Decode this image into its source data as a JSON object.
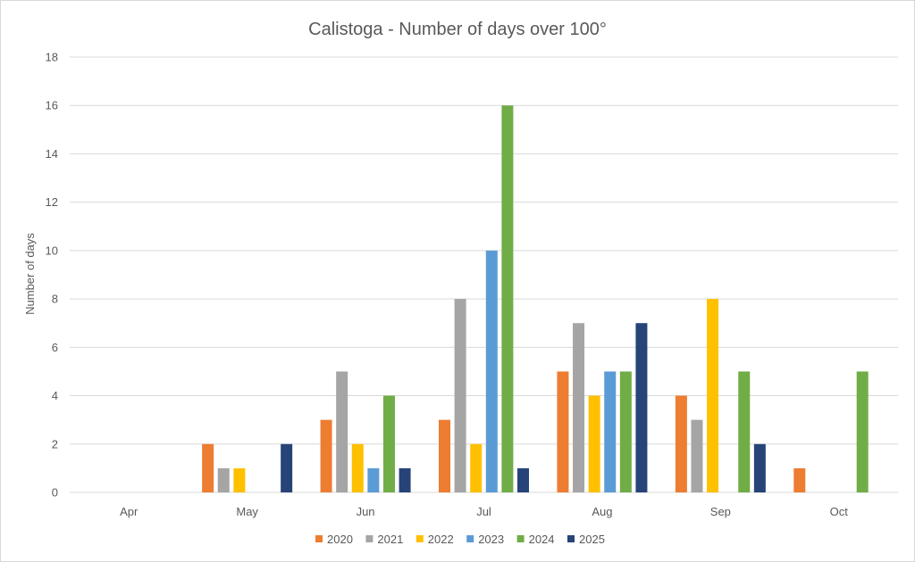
{
  "chart_data": {
    "type": "bar",
    "title": "Calistoga - Number of days over 100°",
    "xlabel": "",
    "ylabel": "Number of days",
    "ylim": [
      0,
      18
    ],
    "yticks": [
      "0",
      "2",
      "4",
      "6",
      "8",
      "10",
      "12",
      "14",
      "16",
      "18"
    ],
    "grid": true,
    "legend_position": "bottom",
    "categories": [
      "Apr",
      "May",
      "Jun",
      "Jul",
      "Aug",
      "Sep",
      "Oct"
    ],
    "series": [
      {
        "name": "2020",
        "color": "#ED7D31",
        "values": [
          0,
          2,
          3,
          3,
          5,
          4,
          1
        ]
      },
      {
        "name": "2021",
        "color": "#A5A5A5",
        "values": [
          0,
          1,
          5,
          8,
          7,
          3,
          0
        ]
      },
      {
        "name": "2022",
        "color": "#FFC000",
        "values": [
          0,
          1,
          2,
          2,
          4,
          8,
          0
        ]
      },
      {
        "name": "2023",
        "color": "#5B9BD5",
        "values": [
          0,
          0,
          1,
          10,
          5,
          0,
          0
        ]
      },
      {
        "name": "2024",
        "color": "#70AD47",
        "values": [
          0,
          0,
          4,
          16,
          5,
          5,
          5
        ]
      },
      {
        "name": "2025",
        "color": "#264478",
        "values": [
          0,
          2,
          1,
          1,
          7,
          2,
          0
        ]
      }
    ]
  }
}
